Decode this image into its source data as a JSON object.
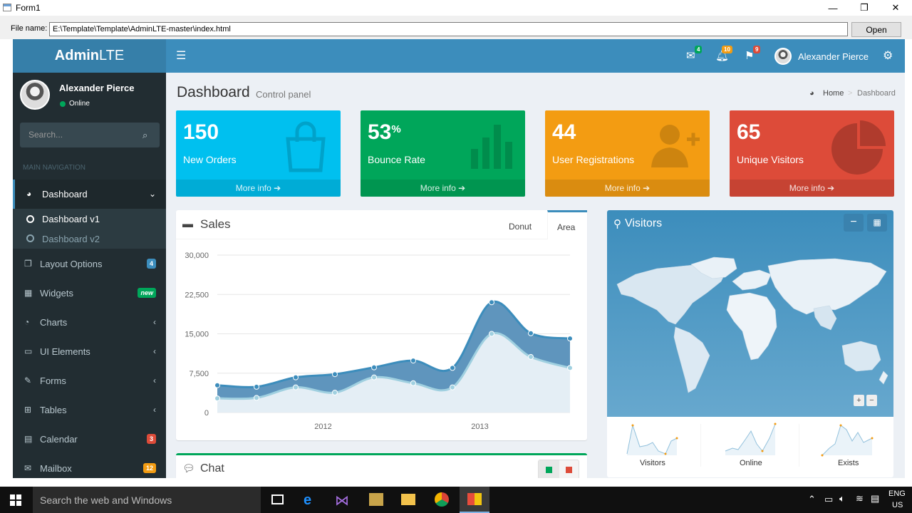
{
  "window": {
    "title": "Form1",
    "minimize": "—",
    "restore": "❐",
    "close": "✕"
  },
  "filebar": {
    "label": "File name:",
    "value": "E:\\Template\\Template\\AdminLTE-master\\index.html",
    "open_label": "Open"
  },
  "header": {
    "logo_bold": "Admin",
    "logo_rest": "LTE",
    "toggle_icon": "menu-icon",
    "messages_count": "4",
    "notifications_count": "10",
    "tasks_count": "9",
    "user_name": "Alexander Pierce",
    "colors": {
      "logo": "#367fa9",
      "navbar": "#3c8dbc"
    }
  },
  "sidebar": {
    "user_name": "Alexander Pierce",
    "status": "Online",
    "search_placeholder": "Search...",
    "nav_header": "MAIN NAVIGATION",
    "items": [
      {
        "label": "Dashboard",
        "icon": "dashboard-icon"
      },
      {
        "label": "Layout Options",
        "icon": "files-icon",
        "badge": "4",
        "badge_color": "#3c8dbc"
      },
      {
        "label": "Widgets",
        "icon": "th-icon",
        "badge": "new",
        "badge_color": "#00a65a"
      },
      {
        "label": "Charts",
        "icon": "pie-chart-icon"
      },
      {
        "label": "UI Elements",
        "icon": "laptop-icon"
      },
      {
        "label": "Forms",
        "icon": "edit-icon"
      },
      {
        "label": "Tables",
        "icon": "table-icon"
      },
      {
        "label": "Calendar",
        "icon": "calendar-icon",
        "badge": "3",
        "badge_color": "#dd4b39"
      },
      {
        "label": "Mailbox",
        "icon": "envelope-icon",
        "badge": "12",
        "badge_color": "#f39c12"
      }
    ],
    "submenu": [
      "Dashboard v1",
      "Dashboard v2"
    ]
  },
  "content": {
    "title": "Dashboard",
    "subtitle": "Control panel",
    "breadcrumb_home": "Home",
    "breadcrumb_current": "Dashboard",
    "stats": [
      {
        "value": "150",
        "suffix": "",
        "label": "New Orders",
        "more": "More info",
        "color": "#00c0ef",
        "icon": "shopping-bag-icon"
      },
      {
        "value": "53",
        "suffix": "%",
        "label": "Bounce Rate",
        "more": "More info",
        "color": "#00a65a",
        "icon": "bar-chart-icon"
      },
      {
        "value": "44",
        "suffix": "",
        "label": "User Registrations",
        "more": "More info",
        "color": "#f39c12",
        "icon": "user-plus-icon"
      },
      {
        "value": "65",
        "suffix": "",
        "label": "Unique Visitors",
        "more": "More info",
        "color": "#dd4b39",
        "icon": "pie-chart-icon"
      }
    ],
    "sales": {
      "title": "Sales",
      "tab_donut": "Donut",
      "tab_area": "Area",
      "active_tab": "Area"
    },
    "chat": {
      "title": "Chat"
    },
    "visitors": {
      "title": "Visitors",
      "sparklines": [
        "Visitors",
        "Online",
        "Exists"
      ],
      "color": "#3c8dbc"
    }
  },
  "chart_data": {
    "type": "area",
    "y_ticks": [
      "30,000",
      "22,500",
      "15,000",
      "7,500",
      "0"
    ],
    "x_tick_labels": [
      "2012",
      "2013"
    ],
    "ylim": [
      0,
      30000
    ],
    "series": [
      {
        "values": [
          5200,
          4900,
          6700,
          7300,
          8600,
          9900,
          8500,
          21000,
          15100,
          14100
        ],
        "color": "#3c8dbc"
      },
      {
        "values": [
          2700,
          2800,
          4800,
          3800,
          6700,
          5600,
          4800,
          15000,
          10600,
          8500
        ],
        "color": "#a0d0e0"
      }
    ]
  },
  "taskbar": {
    "search_placeholder": "Search the web and Windows",
    "lang1": "ENG",
    "lang2": "US"
  }
}
